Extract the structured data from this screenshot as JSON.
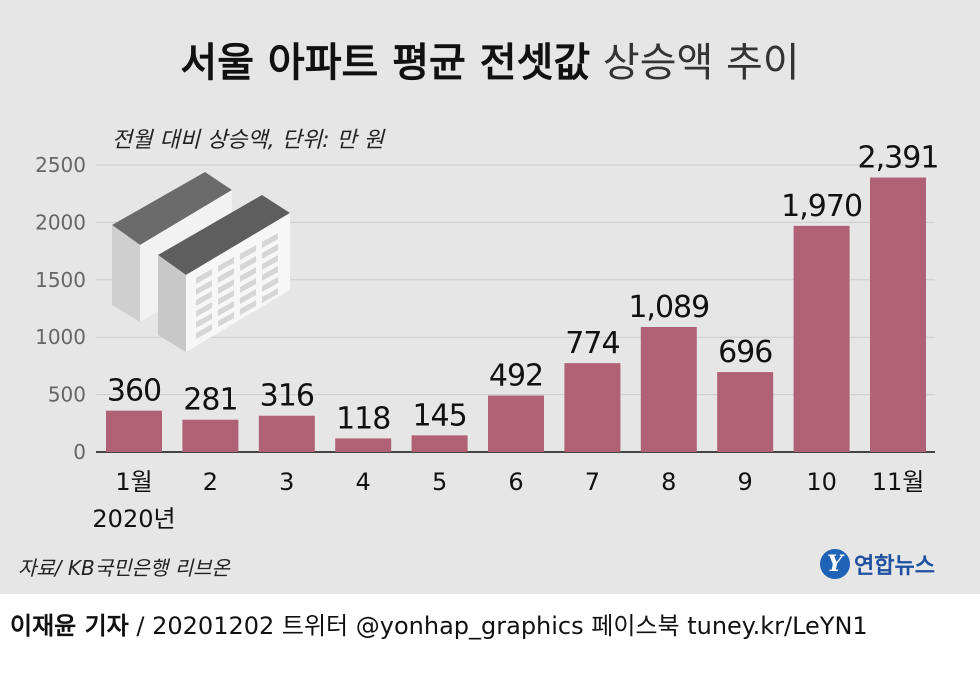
{
  "title": {
    "bold": "서울 아파트 평균 전셋값",
    "light": "상승액 추이"
  },
  "subtitle": "전월 대비 상승액, 단위: 만 원",
  "source": "자료/ KB국민은행 리브온",
  "logo": {
    "mark": "Y",
    "text": "연합뉴스",
    "icon": "yonhap-logo-icon"
  },
  "footer": {
    "reporter": "이재윤 기자",
    "rest": " / 20201202   트위터 @yonhap_graphics  페이스북 tuney.kr/LeYN1"
  },
  "colors": {
    "bar": "#b06175",
    "panel": "#e6e6e6",
    "grid": "#cccccc"
  },
  "chart_data": {
    "type": "bar",
    "categories": [
      "1월",
      "2",
      "3",
      "4",
      "5",
      "6",
      "7",
      "8",
      "9",
      "10",
      "11월"
    ],
    "category_sublabel": "2020년",
    "values": [
      360,
      281,
      316,
      118,
      145,
      492,
      774,
      1089,
      696,
      1970,
      2391
    ],
    "value_labels": [
      "360",
      "281",
      "316",
      "118",
      "145",
      "492",
      "774",
      "1,089",
      "696",
      "1,970",
      "2,391"
    ],
    "yticks": [
      0,
      500,
      1000,
      1500,
      2000,
      2500
    ],
    "ylim": [
      0,
      2500
    ],
    "grid": true
  }
}
